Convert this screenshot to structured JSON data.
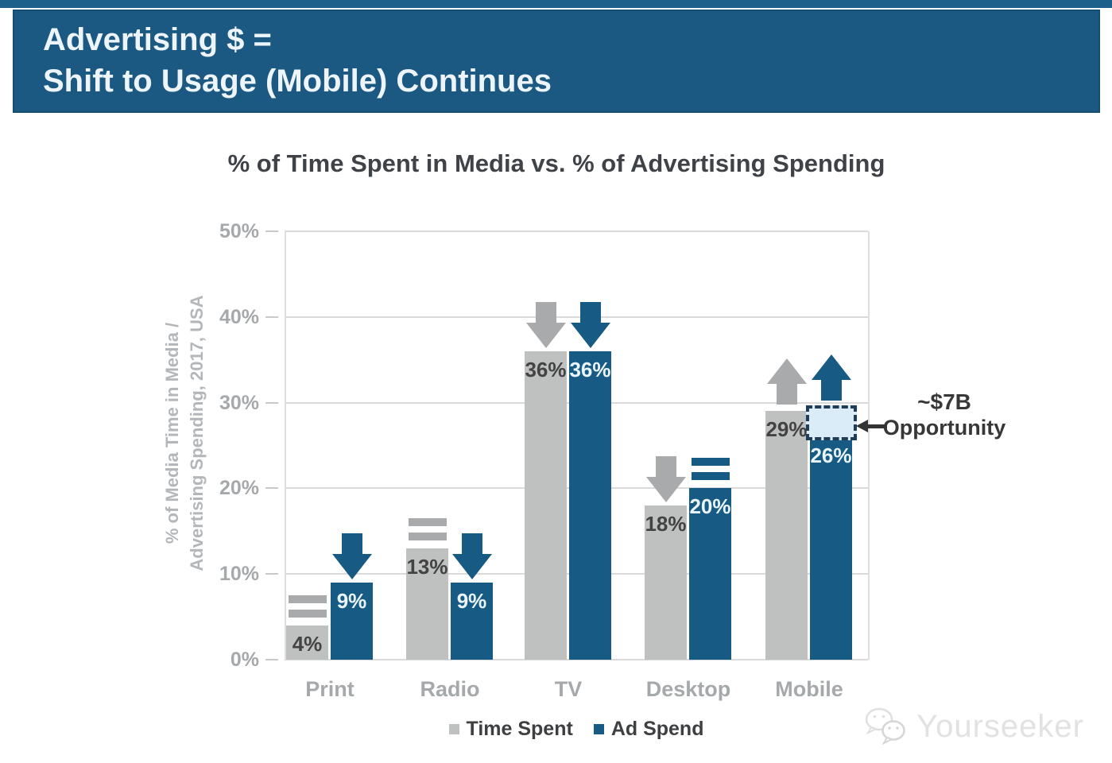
{
  "header": {
    "line1": "Advertising $ =",
    "line2": "Shift to Usage (Mobile) Continues"
  },
  "chart_data": {
    "type": "bar",
    "title": "% of Time Spent in Media vs. % of Advertising Spending",
    "ylabel_line1": "% of Media Time in Media /",
    "ylabel_line2": "Advertising Spending, 2017, USA",
    "yticks": [
      "0%",
      "10%",
      "20%",
      "30%",
      "40%",
      "50%"
    ],
    "ylim": [
      0,
      50
    ],
    "grid": true,
    "legend_position": "bottom",
    "categories": [
      "Print",
      "Radio",
      "TV",
      "Desktop",
      "Mobile"
    ],
    "series": [
      {
        "name": "Time Spent",
        "color": "#bfc0c0",
        "marker_color": "#a8aaac",
        "values": [
          4,
          13,
          36,
          18,
          29
        ],
        "value_labels": [
          "4%",
          "13%",
          "36%",
          "18%",
          "29%"
        ],
        "trends": [
          "flat",
          "flat",
          "down",
          "down",
          "up"
        ]
      },
      {
        "name": "Ad Spend",
        "color": "#175b84",
        "marker_color": "#175b84",
        "values": [
          9,
          9,
          36,
          20,
          26
        ],
        "value_labels": [
          "9%",
          "9%",
          "36%",
          "20%",
          "26%"
        ],
        "trends": [
          "down",
          "down",
          "down",
          "flat",
          "up"
        ]
      }
    ],
    "annotation": {
      "line1": "~$7B",
      "line2": "Opportunity",
      "category": "Mobile",
      "series": "Ad Spend",
      "box_from_value": 26,
      "box_to_value": 29.5,
      "box_fill": "#d9ecf8",
      "box_border": "#1f3c59",
      "arrow_icon": "left-arrow"
    }
  },
  "colors": {
    "top_strip": "#1e608c",
    "banner_bg": "#1b5882",
    "banner_text": "#eef5fa",
    "title_text": "#3f4246",
    "axis_text": "#a6a9ab",
    "grid": "#dadada",
    "value_on_gray": "#434343",
    "value_on_blue": "#e9f4fb",
    "annotation_text": "#373737"
  },
  "legend": {
    "items": [
      "Time Spent",
      "Ad Spend"
    ]
  },
  "watermark": {
    "text": "Yourseeker",
    "icon": "wechat-chat-bubbles-icon"
  }
}
